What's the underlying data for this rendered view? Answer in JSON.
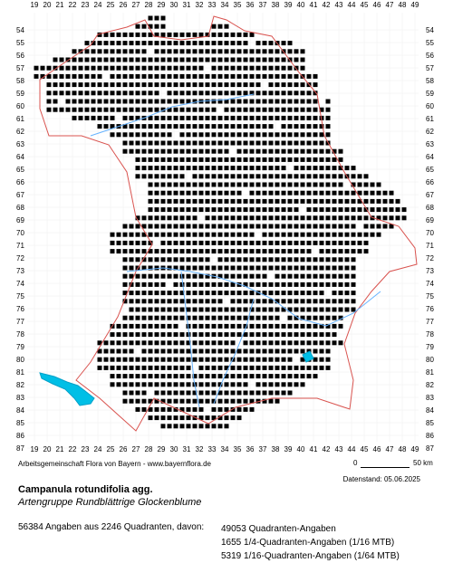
{
  "map": {
    "x_labels": [
      "19",
      "20",
      "21",
      "22",
      "23",
      "24",
      "25",
      "26",
      "27",
      "28",
      "29",
      "30",
      "31",
      "32",
      "33",
      "34",
      "35",
      "36",
      "37",
      "38",
      "39",
      "40",
      "41",
      "42",
      "43",
      "44",
      "45",
      "46",
      "47",
      "48",
      "49"
    ],
    "y_labels": [
      "54",
      "55",
      "56",
      "57",
      "58",
      "59",
      "60",
      "61",
      "62",
      "63",
      "64",
      "65",
      "66",
      "67",
      "68",
      "69",
      "70",
      "71",
      "72",
      "73",
      "74",
      "75",
      "76",
      "77",
      "78",
      "79",
      "80",
      "81",
      "82",
      "83",
      "84",
      "85",
      "86",
      "87"
    ],
    "colors": {
      "occurrence": "#000000",
      "border": "#d9534f",
      "water": "#00bfe6",
      "river": "#66b3ff",
      "grid": "#eeeeee"
    }
  },
  "footer": {
    "credit": "Arbeitsgemeinschaft Flora von Bayern - www.bayernflora.de",
    "scale_zero": "0",
    "scale_km": "50 km",
    "date": "Datenstand: 05.06.2025"
  },
  "species": {
    "name": "Campanula rotundifolia agg.",
    "common": "Artengruppe Rundblättrige Glockenblume"
  },
  "stats": {
    "summary": "56384 Angaben aus 2246 Quadranten, davon:",
    "lines": [
      "49053 Quadranten-Angaben",
      "1655 1/4-Quadranten-Angaben (1/16 MTB)",
      "5319 1/16-Quadranten-Angaben (1/64 MTB)"
    ]
  }
}
